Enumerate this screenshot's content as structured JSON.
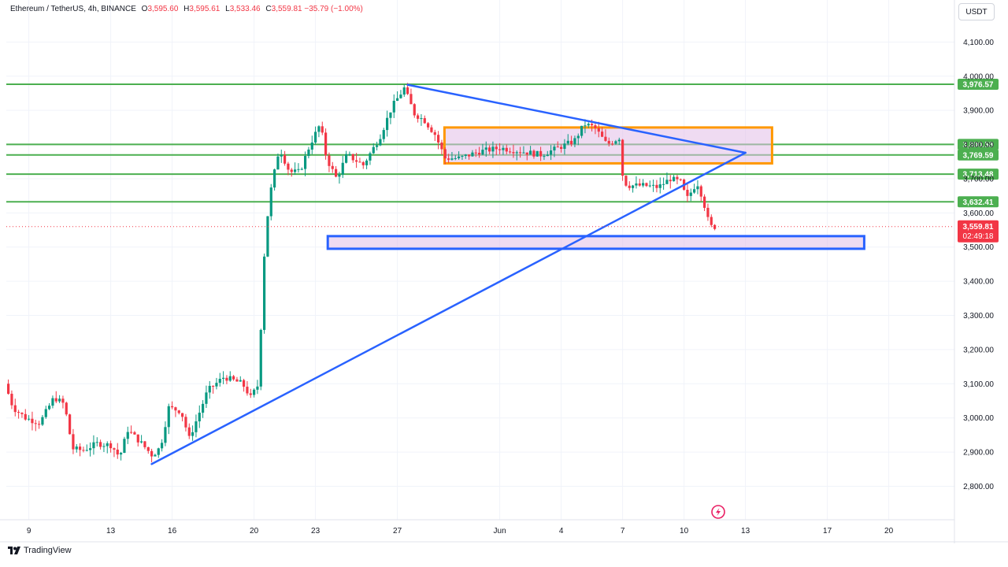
{
  "header": {
    "symbol": "Ethereum / TetherUS, 4h, BINANCE",
    "o_key": "O",
    "o_val": "3,595.60",
    "h_key": "H",
    "h_val": "3,595.61",
    "l_key": "L",
    "l_val": "3,533.46",
    "c_key": "C",
    "c_val": "3,559.81",
    "change": "−35.79 (−1.00%)"
  },
  "currency_button": "USDT",
  "brand": "TradingView",
  "colors": {
    "up": "#089981",
    "down": "#f23645",
    "green_line": "#4caf50",
    "blue": "#2962ff",
    "orange": "#ff9800",
    "purple_fill": "#e1bee7"
  },
  "chart_data": {
    "type": "candlestick",
    "title": "Ethereum / TetherUS, 4h, BINANCE",
    "ylim": [
      2735,
      4175
    ],
    "x_range": [
      "May 8",
      "June 21"
    ],
    "y_ticks": [
      4100,
      4000,
      3900,
      3800,
      3700,
      3600,
      3500,
      3400,
      3300,
      3200,
      3100,
      3000,
      2900,
      2800
    ],
    "y_tick_labels": [
      "4,100.00",
      "4,000.00",
      "3,900.00",
      "3,800.00",
      "3,700.00",
      "3,600.00",
      "3,500.00",
      "3,400.00",
      "3,300.00",
      "3,200.00",
      "3,100.00",
      "3,000.00",
      "2,900.00",
      "2,800.00"
    ],
    "x_tick_labels": [
      "9",
      "13",
      "16",
      "20",
      "23",
      "27",
      "Jun",
      "4",
      "7",
      "10",
      "13",
      "17",
      "20"
    ],
    "x_tick_days": [
      9,
      13,
      16,
      20,
      23,
      27,
      32,
      35,
      38,
      41,
      44,
      48,
      51
    ],
    "grid": true,
    "last_price": {
      "value": 3559.81,
      "label": "3,559.81",
      "countdown": "02:49:18"
    },
    "horizontal_levels": [
      {
        "value": 3976.57,
        "label": "3,976.57"
      },
      {
        "value": 3800.58,
        "label": "3,800.58"
      },
      {
        "value": 3769.59,
        "label": "3,769.59"
      },
      {
        "value": 3713.48,
        "label": "3,713.48"
      },
      {
        "value": 3632.41,
        "label": "3,632.41"
      }
    ],
    "trendlines": [
      {
        "from": {
          "day": 27.5,
          "price": 3975
        },
        "to": {
          "day": 44.0,
          "price": 3776
        }
      },
      {
        "from": {
          "day": 15.0,
          "price": 2865
        },
        "to": {
          "day": 44.0,
          "price": 3776
        }
      }
    ],
    "boxes": [
      {
        "name": "consolidation-range",
        "day0": 29.3,
        "day1": 45.3,
        "p0": 3850,
        "p1": 3745,
        "stroke": "#ff9800"
      },
      {
        "name": "support-zone",
        "day0": 23.6,
        "day1": 49.8,
        "p0": 3532,
        "p1": 3495,
        "stroke": "#2962ff"
      }
    ],
    "price_path": [
      {
        "day": 8.0,
        "price": 3100
      },
      {
        "day": 8.4,
        "price": 3030
      },
      {
        "day": 9.0,
        "price": 3000
      },
      {
        "day": 9.7,
        "price": 2985
      },
      {
        "day": 10.4,
        "price": 3060
      },
      {
        "day": 10.9,
        "price": 3040
      },
      {
        "day": 11.3,
        "price": 2910
      },
      {
        "day": 11.8,
        "price": 2905
      },
      {
        "day": 12.5,
        "price": 2925
      },
      {
        "day": 13.2,
        "price": 2920
      },
      {
        "day": 13.6,
        "price": 2885
      },
      {
        "day": 14.0,
        "price": 2965
      },
      {
        "day": 14.6,
        "price": 2930
      },
      {
        "day": 15.2,
        "price": 2890
      },
      {
        "day": 15.6,
        "price": 2915
      },
      {
        "day": 16.0,
        "price": 3030
      },
      {
        "day": 16.6,
        "price": 3020
      },
      {
        "day": 17.0,
        "price": 2940
      },
      {
        "day": 17.4,
        "price": 3000
      },
      {
        "day": 17.9,
        "price": 3080
      },
      {
        "day": 18.7,
        "price": 3120
      },
      {
        "day": 19.6,
        "price": 3100
      },
      {
        "day": 20.0,
        "price": 3060
      },
      {
        "day": 20.4,
        "price": 3100
      },
      {
        "day": 20.6,
        "price": 3430
      },
      {
        "day": 20.9,
        "price": 3640
      },
      {
        "day": 21.4,
        "price": 3790
      },
      {
        "day": 21.9,
        "price": 3720
      },
      {
        "day": 22.4,
        "price": 3720
      },
      {
        "day": 22.9,
        "price": 3800
      },
      {
        "day": 23.4,
        "price": 3860
      },
      {
        "day": 23.7,
        "price": 3760
      },
      {
        "day": 24.2,
        "price": 3700
      },
      {
        "day": 24.7,
        "price": 3770
      },
      {
        "day": 25.5,
        "price": 3740
      },
      {
        "day": 26.3,
        "price": 3820
      },
      {
        "day": 26.9,
        "price": 3910
      },
      {
        "day": 27.5,
        "price": 3965
      },
      {
        "day": 28.0,
        "price": 3890
      },
      {
        "day": 28.5,
        "price": 3870
      },
      {
        "day": 29.0,
        "price": 3830
      },
      {
        "day": 29.5,
        "price": 3760
      },
      {
        "day": 30.2,
        "price": 3760
      },
      {
        "day": 31.2,
        "price": 3780
      },
      {
        "day": 32.2,
        "price": 3790
      },
      {
        "day": 33.2,
        "price": 3780
      },
      {
        "day": 34.2,
        "price": 3770
      },
      {
        "day": 35.0,
        "price": 3790
      },
      {
        "day": 35.8,
        "price": 3810
      },
      {
        "day": 36.3,
        "price": 3860
      },
      {
        "day": 36.8,
        "price": 3850
      },
      {
        "day": 37.4,
        "price": 3800
      },
      {
        "day": 38.0,
        "price": 3820
      },
      {
        "day": 38.2,
        "price": 3690
      },
      {
        "day": 38.5,
        "price": 3680
      },
      {
        "day": 39.2,
        "price": 3680
      },
      {
        "day": 39.9,
        "price": 3675
      },
      {
        "day": 40.5,
        "price": 3700
      },
      {
        "day": 41.0,
        "price": 3690
      },
      {
        "day": 41.3,
        "price": 3640
      },
      {
        "day": 41.8,
        "price": 3690
      },
      {
        "day": 42.1,
        "price": 3640
      },
      {
        "day": 42.3,
        "price": 3585
      },
      {
        "day": 42.5,
        "price": 3559.81
      }
    ]
  }
}
